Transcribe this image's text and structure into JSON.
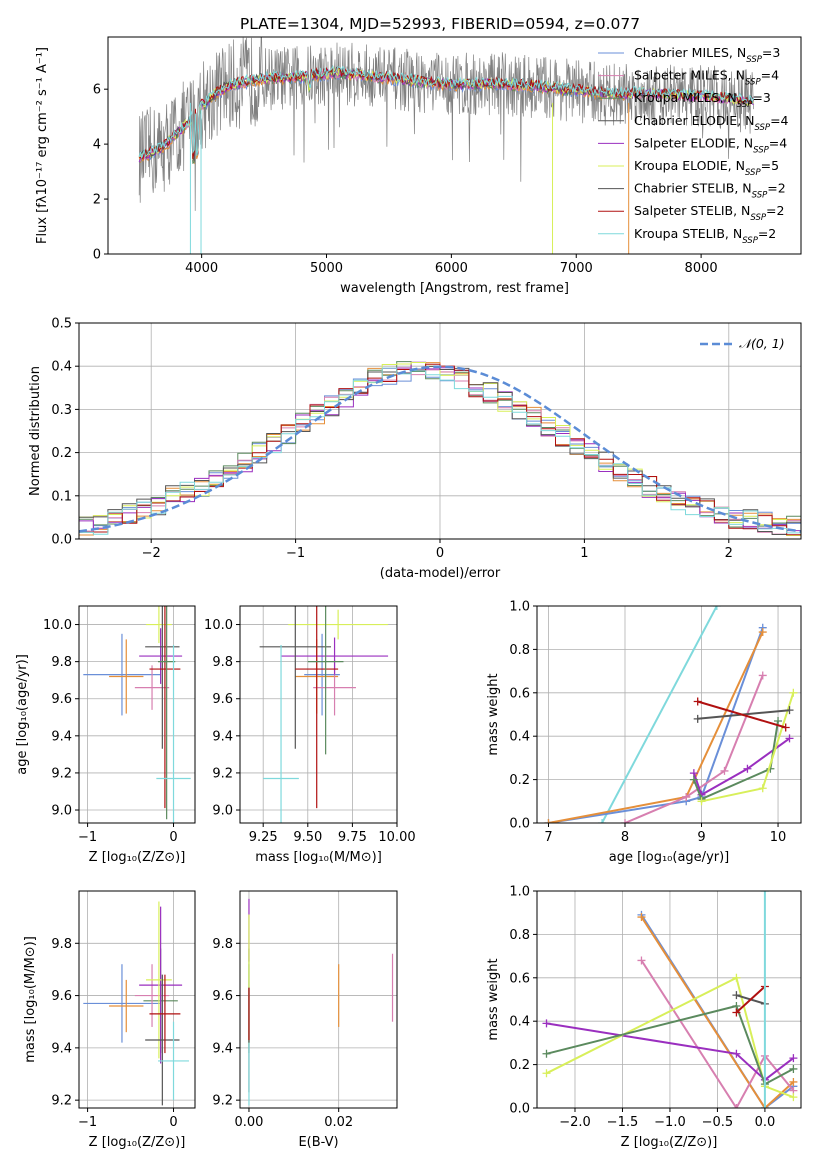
{
  "title": "PLATE=1304, MJD=52993, FIBERID=0594, z=0.077",
  "colors": {
    "chabrier_miles": "#6a8fd8",
    "salpeter_miles": "#e58f3a",
    "kroupa_miles": "#5b8a5e",
    "chabrier_elodie": "#d77fb0",
    "salpeter_elodie": "#9a2fbf",
    "kroupa_elodie": "#d8ef5a",
    "chabrier_stelib": "#555555",
    "salpeter_stelib": "#b01010",
    "kroupa_stelib": "#7fd9dc",
    "spectrum": "#808080",
    "normal": "#5b8cd6"
  },
  "chart_data": [
    {
      "type": "line",
      "id": "spectrum",
      "xlabel": "wavelength [Angstrom, rest frame]",
      "ylabel": "Flux [fλ10⁻¹⁷ erg cm⁻² s⁻¹ A⁻¹]",
      "xlim": [
        3250,
        8800
      ],
      "ylim": [
        0,
        7.9
      ],
      "xticks": [
        4000,
        5000,
        6000,
        7000,
        8000
      ],
      "yticks": [
        0,
        2,
        4,
        6
      ],
      "continuum": [
        [
          3500,
          3.5
        ],
        [
          3600,
          3.7
        ],
        [
          3700,
          3.9
        ],
        [
          3800,
          4.4
        ],
        [
          3900,
          4.8
        ],
        [
          3950,
          5.1
        ],
        [
          4000,
          5.4
        ],
        [
          4100,
          5.8
        ],
        [
          4200,
          6.1
        ],
        [
          4300,
          6.2
        ],
        [
          4400,
          6.3
        ],
        [
          4500,
          6.4
        ],
        [
          4700,
          6.4
        ],
        [
          4900,
          6.5
        ],
        [
          5100,
          6.6
        ],
        [
          5300,
          6.5
        ],
        [
          5500,
          6.4
        ],
        [
          5700,
          6.3
        ],
        [
          5900,
          6.2
        ],
        [
          6100,
          6.15
        ],
        [
          6300,
          6.2
        ],
        [
          6500,
          6.15
        ],
        [
          6700,
          6.1
        ],
        [
          6900,
          6.0
        ],
        [
          7100,
          5.9
        ],
        [
          7300,
          5.8
        ],
        [
          7500,
          5.85
        ],
        [
          7700,
          5.8
        ],
        [
          7900,
          5.75
        ],
        [
          8100,
          5.7
        ],
        [
          8300,
          5.6
        ],
        [
          8400,
          5.55
        ]
      ],
      "legend": [
        {
          "label": "Chabrier MILES, N",
          "sub": "SSP",
          "suffix": "=3",
          "color": "chabrier_miles"
        },
        {
          "label": "Salpeter MILES, N",
          "sub": "SSP",
          "suffix": "=4",
          "color": "chabrier_elodie"
        },
        {
          "label": "Kroupa MILES, N",
          "sub": "SSP",
          "suffix": "=3",
          "color": "kroupa_miles"
        },
        {
          "label": "Chabrier ELODIE, N",
          "sub": "SSP",
          "suffix": "=4",
          "color": "chabrier_stelib"
        },
        {
          "label": "Salpeter ELODIE, N",
          "sub": "SSP",
          "suffix": "=4",
          "color": "salpeter_elodie"
        },
        {
          "label": "Kroupa ELODIE, N",
          "sub": "SSP",
          "suffix": "=5",
          "color": "kroupa_elodie"
        },
        {
          "label": "Chabrier STELIB, N",
          "sub": "SSP",
          "suffix": "=2",
          "color": "chabrier_stelib"
        },
        {
          "label": "Salpeter STELIB, N",
          "sub": "SSP",
          "suffix": "=2",
          "color": "salpeter_stelib"
        },
        {
          "label": "Kroupa STELIB, N",
          "sub": "SSP",
          "suffix": "=2",
          "color": "kroupa_stelib"
        }
      ]
    },
    {
      "type": "bar",
      "id": "residuals",
      "xlabel": "(data-model)/error",
      "ylabel": "Normed distribution",
      "xlim": [
        -2.5,
        2.5
      ],
      "ylim": [
        0,
        0.5
      ],
      "xticks": [
        -2,
        -1,
        0,
        1,
        2
      ],
      "yticks": [
        0.0,
        0.1,
        0.2,
        0.3,
        0.4,
        0.5
      ],
      "normal_label": "𝒩(0, 1)",
      "hist_base": [
        0.03,
        0.035,
        0.05,
        0.06,
        0.07,
        0.08,
        0.1,
        0.11,
        0.12,
        0.14,
        0.16,
        0.18,
        0.2,
        0.22,
        0.24,
        0.27,
        0.29,
        0.31,
        0.33,
        0.35,
        0.37,
        0.38,
        0.39,
        0.4,
        0.39,
        0.38,
        0.37,
        0.35,
        0.34,
        0.32,
        0.3,
        0.28,
        0.26,
        0.24,
        0.22,
        0.2,
        0.18,
        0.16,
        0.14,
        0.12,
        0.1,
        0.09,
        0.08,
        0.07,
        0.06,
        0.05,
        0.045,
        0.04,
        0.035,
        0.03
      ],
      "hist_series": [
        "chabrier_miles",
        "salpeter_miles",
        "kroupa_miles",
        "chabrier_elodie",
        "salpeter_elodie",
        "kroupa_elodie",
        "chabrier_stelib",
        "salpeter_stelib",
        "kroupa_stelib"
      ]
    },
    {
      "type": "scatter",
      "id": "age_vs_Z",
      "xlabel": "Z [log₁₀(Z/Z⊙)]",
      "ylabel": "age  [log₁₀(age/yr)]",
      "xlim": [
        -1.1,
        0.25
      ],
      "ylim": [
        8.93,
        10.1
      ],
      "xticks": [
        -1,
        0
      ],
      "yticks": [
        9.0,
        9.2,
        9.4,
        9.6,
        9.8,
        10.0
      ],
      "points": [
        {
          "x": -0.6,
          "y": 9.73,
          "ex": 0.45,
          "ey": 0.22,
          "color": "chabrier_miles"
        },
        {
          "x": -0.55,
          "y": 9.72,
          "ex": 0.2,
          "ey": 0.2,
          "color": "salpeter_miles"
        },
        {
          "x": -0.25,
          "y": 9.66,
          "ex": 0.2,
          "ey": 0.12,
          "color": "chabrier_elodie"
        },
        {
          "x": -0.15,
          "y": 9.83,
          "ex": 0.25,
          "ey": 0.15,
          "color": "salpeter_elodie"
        },
        {
          "x": -0.17,
          "y": 10.0,
          "ex": 0.15,
          "ey": 0.1,
          "color": "kroupa_elodie"
        },
        {
          "x": -0.13,
          "y": 9.88,
          "ex": 0.2,
          "ey": 0.55,
          "color": "chabrier_stelib"
        },
        {
          "x": -0.1,
          "y": 9.76,
          "ex": 0.18,
          "ey": 0.75,
          "color": "salpeter_stelib"
        },
        {
          "x": -0.08,
          "y": 9.8,
          "ex": 0.1,
          "ey": 0.85,
          "color": "kroupa_miles"
        },
        {
          "x": 0.0,
          "y": 9.17,
          "ex": 0.2,
          "ey": 0.72,
          "color": "kroupa_stelib"
        }
      ]
    },
    {
      "type": "scatter",
      "id": "age_vs_mass",
      "xlabel": "mass [log₁₀(M/M⊙)]",
      "ylabel": "",
      "xlim": [
        9.12,
        10.0
      ],
      "ylim": [
        8.93,
        10.1
      ],
      "xticks": [
        9.25,
        9.5,
        9.75,
        10.0
      ],
      "yticks": [
        9.0,
        9.2,
        9.4,
        9.6,
        9.8,
        10.0
      ],
      "points": [
        {
          "x": 9.58,
          "y": 9.73,
          "ex": 0.1,
          "ey": 0.22,
          "color": "chabrier_miles"
        },
        {
          "x": 9.55,
          "y": 9.72,
          "ex": 0.12,
          "ey": 0.2,
          "color": "salpeter_miles"
        },
        {
          "x": 9.65,
          "y": 9.66,
          "ex": 0.12,
          "ey": 0.15,
          "color": "chabrier_elodie"
        },
        {
          "x": 9.65,
          "y": 9.83,
          "ex": 0.3,
          "ey": 0.1,
          "color": "salpeter_elodie"
        },
        {
          "x": 9.67,
          "y": 10.0,
          "ex": 0.28,
          "ey": 0.08,
          "color": "kroupa_elodie"
        },
        {
          "x": 9.43,
          "y": 9.88,
          "ex": 0.2,
          "ey": 0.55,
          "color": "chabrier_stelib"
        },
        {
          "x": 9.55,
          "y": 9.76,
          "ex": 0.12,
          "ey": 0.75,
          "color": "salpeter_stelib"
        },
        {
          "x": 9.6,
          "y": 9.8,
          "ex": 0.1,
          "ey": 0.5,
          "color": "kroupa_miles"
        },
        {
          "x": 9.35,
          "y": 9.17,
          "ex": 0.1,
          "ey": 0.72,
          "color": "kroupa_stelib"
        }
      ]
    },
    {
      "type": "line",
      "id": "weight_vs_age",
      "xlabel": "age  [log₁₀(age/yr)]",
      "ylabel": "mass weight",
      "xlim": [
        6.85,
        10.3
      ],
      "ylim": [
        0,
        1.0
      ],
      "xticks": [
        7,
        8,
        9,
        10
      ],
      "yticks": [
        0.0,
        0.2,
        0.4,
        0.6,
        0.8,
        1.0
      ],
      "series": [
        {
          "color": "kroupa_stelib",
          "points": [
            [
              7.7,
              0.0
            ],
            [
              9.2,
              1.0
            ]
          ]
        },
        {
          "color": "chabrier_miles",
          "points": [
            [
              7.0,
              0.0
            ],
            [
              8.8,
              0.1
            ],
            [
              9.0,
              0.12
            ],
            [
              9.8,
              0.9
            ]
          ]
        },
        {
          "color": "salpeter_miles",
          "points": [
            [
              7.0,
              0.0
            ],
            [
              8.8,
              0.12
            ],
            [
              9.8,
              0.88
            ]
          ]
        },
        {
          "color": "chabrier_elodie",
          "points": [
            [
              8.0,
              0.0
            ],
            [
              8.8,
              0.12
            ],
            [
              9.3,
              0.24
            ],
            [
              9.8,
              0.68
            ]
          ]
        },
        {
          "color": "salpeter_elodie",
          "points": [
            [
              8.9,
              0.23
            ],
            [
              9.0,
              0.13
            ],
            [
              9.6,
              0.25
            ],
            [
              10.15,
              0.39
            ]
          ]
        },
        {
          "color": "kroupa_miles",
          "points": [
            [
              8.9,
              0.2
            ],
            [
              9.0,
              0.11
            ],
            [
              9.9,
              0.25
            ],
            [
              10.0,
              0.47
            ]
          ]
        },
        {
          "color": "kroupa_elodie",
          "points": [
            [
              9.0,
              0.1
            ],
            [
              9.8,
              0.16
            ],
            [
              10.2,
              0.6
            ]
          ]
        },
        {
          "color": "chabrier_stelib",
          "points": [
            [
              8.95,
              0.48
            ],
            [
              10.15,
              0.52
            ]
          ]
        },
        {
          "color": "salpeter_stelib",
          "points": [
            [
              8.95,
              0.56
            ],
            [
              10.1,
              0.44
            ]
          ]
        }
      ]
    },
    {
      "type": "scatter",
      "id": "mass_vs_Z",
      "xlabel": "Z [log₁₀(Z/Z⊙)]",
      "ylabel": "mass [log₁₀(M/M⊙)]",
      "xlim": [
        -1.1,
        0.25
      ],
      "ylim": [
        9.17,
        10.0
      ],
      "xticks": [
        -1,
        0
      ],
      "yticks": [
        9.2,
        9.4,
        9.6,
        9.8
      ],
      "points": [
        {
          "x": -0.6,
          "y": 9.57,
          "ex": 0.45,
          "ey": 0.15,
          "color": "chabrier_miles"
        },
        {
          "x": -0.55,
          "y": 9.56,
          "ex": 0.2,
          "ey": 0.1,
          "color": "salpeter_miles"
        },
        {
          "x": -0.15,
          "y": 9.58,
          "ex": 0.2,
          "ey": 0.2,
          "color": "kroupa_miles"
        },
        {
          "x": -0.25,
          "y": 9.6,
          "ex": 0.2,
          "ey": 0.12,
          "color": "chabrier_elodie"
        },
        {
          "x": -0.15,
          "y": 9.64,
          "ex": 0.25,
          "ey": 0.3,
          "color": "salpeter_elodie"
        },
        {
          "x": -0.17,
          "y": 9.66,
          "ex": 0.15,
          "ey": 0.3,
          "color": "kroupa_elodie"
        },
        {
          "x": -0.13,
          "y": 9.43,
          "ex": 0.2,
          "ey": 0.25,
          "color": "chabrier_stelib"
        },
        {
          "x": -0.1,
          "y": 9.53,
          "ex": 0.18,
          "ey": 0.15,
          "color": "salpeter_stelib"
        },
        {
          "x": 0.0,
          "y": 9.35,
          "ex": 0.18,
          "ey": 0.15,
          "color": "kroupa_stelib"
        }
      ]
    },
    {
      "type": "scatter",
      "id": "mass_vs_ebv",
      "xlabel": "E(B-V)",
      "ylabel": "",
      "xlim": [
        -0.002,
        0.033
      ],
      "ylim": [
        9.17,
        10.0
      ],
      "xticks": [
        0.0,
        0.02
      ],
      "yticks": [
        9.2,
        9.4,
        9.6,
        9.8
      ],
      "points": [
        {
          "x": 0.0,
          "y": 9.57,
          "ey": 0.15,
          "color": "chabrier_miles"
        },
        {
          "x": 0.02,
          "y": 9.6,
          "ey": 0.12,
          "color": "salpeter_miles"
        },
        {
          "x": 0.0,
          "y": 9.58,
          "ey": 0.2,
          "color": "kroupa_miles"
        },
        {
          "x": 0.032,
          "y": 9.63,
          "ey": 0.13,
          "color": "chabrier_elodie"
        },
        {
          "x": 0.0,
          "y": 9.85,
          "ey": 0.12,
          "color": "salpeter_elodie"
        },
        {
          "x": 0.0,
          "y": 9.66,
          "ey": 0.25,
          "color": "kroupa_elodie"
        },
        {
          "x": 0.0,
          "y": 9.43,
          "ey": 0.2,
          "color": "chabrier_stelib"
        },
        {
          "x": 0.0,
          "y": 9.53,
          "ey": 0.1,
          "color": "salpeter_stelib"
        },
        {
          "x": 0.0,
          "y": 9.3,
          "ey": 0.12,
          "color": "kroupa_stelib"
        }
      ]
    },
    {
      "type": "line",
      "id": "weight_vs_Z",
      "xlabel": "Z [log₁₀(Z/Z⊙)]",
      "ylabel": "mass weight",
      "xlim": [
        -2.4,
        0.38
      ],
      "ylim": [
        0,
        1.0
      ],
      "xticks": [
        -2.0,
        -1.5,
        -1.0,
        -0.5,
        0.0
      ],
      "yticks": [
        0.0,
        0.2,
        0.4,
        0.6,
        0.8,
        1.0
      ],
      "series": [
        {
          "color": "chabrier_miles",
          "points": [
            [
              -1.3,
              0.89
            ],
            [
              0.0,
              0.0
            ],
            [
              0.3,
              0.1
            ]
          ]
        },
        {
          "color": "salpeter_miles",
          "points": [
            [
              -1.3,
              0.88
            ],
            [
              0.0,
              0.0
            ],
            [
              0.3,
              0.12
            ]
          ]
        },
        {
          "color": "chabrier_elodie",
          "points": [
            [
              -1.3,
              0.68
            ],
            [
              -0.3,
              0.0
            ],
            [
              0.0,
              0.24
            ],
            [
              0.3,
              0.08
            ]
          ]
        },
        {
          "color": "salpeter_elodie",
          "points": [
            [
              -2.3,
              0.39
            ],
            [
              -0.3,
              0.25
            ],
            [
              0.0,
              0.13
            ],
            [
              0.3,
              0.23
            ]
          ]
        },
        {
          "color": "kroupa_elodie",
          "points": [
            [
              -2.3,
              0.16
            ],
            [
              -0.3,
              0.6
            ],
            [
              0.0,
              0.1
            ],
            [
              0.3,
              0.05
            ]
          ]
        },
        {
          "color": "kroupa_miles",
          "points": [
            [
              -2.3,
              0.25
            ],
            [
              -0.3,
              0.47
            ],
            [
              0.0,
              0.11
            ],
            [
              0.3,
              0.18
            ]
          ]
        },
        {
          "color": "chabrier_stelib",
          "points": [
            [
              -0.3,
              0.52
            ],
            [
              0.0,
              0.48
            ]
          ]
        },
        {
          "color": "salpeter_stelib",
          "points": [
            [
              -0.3,
              0.44
            ],
            [
              0.0,
              0.56
            ]
          ]
        },
        {
          "color": "kroupa_stelib",
          "points": [
            [
              0.0,
              0.0
            ],
            [
              0.0,
              1.0
            ]
          ]
        }
      ]
    }
  ]
}
